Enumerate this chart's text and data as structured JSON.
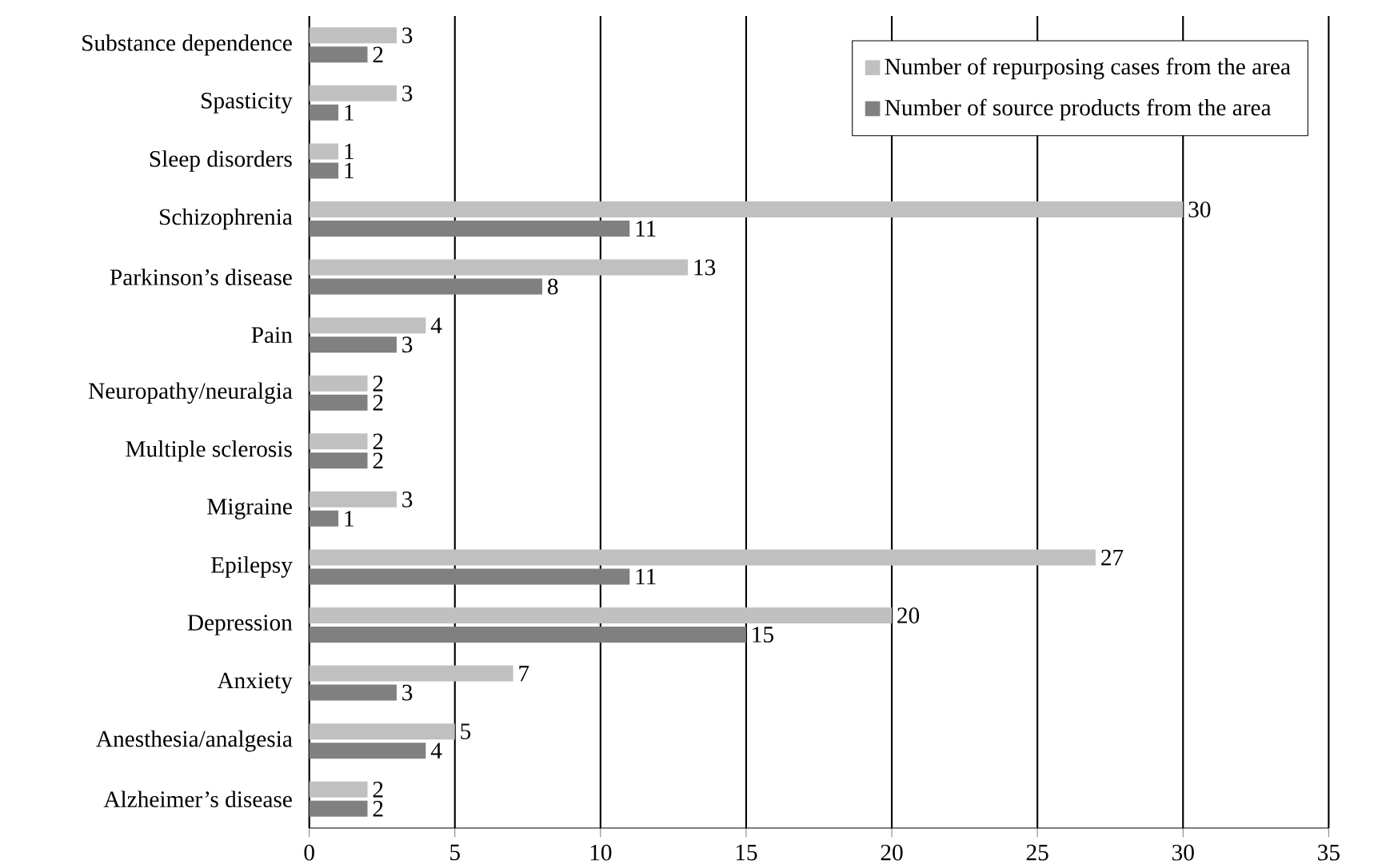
{
  "chart_data": {
    "type": "bar",
    "orientation": "horizontal",
    "categories": [
      "Substance dependence",
      "Spasticity",
      "Sleep disorders",
      "Schizophrenia",
      "Parkinson’s disease",
      "Pain",
      "Neuropathy/neuralgia",
      "Multiple sclerosis",
      "Migraine",
      "Epilepsy",
      "Depression",
      "Anxiety",
      "Anesthesia/analgesia",
      "Alzheimer’s disease"
    ],
    "series": [
      {
        "name": "Number of repurposing cases from the area",
        "color": "#c0c0c0",
        "values": [
          3,
          3,
          1,
          30,
          13,
          4,
          2,
          2,
          3,
          27,
          20,
          7,
          5,
          2
        ]
      },
      {
        "name": "Number of source products from the area",
        "color": "#808080",
        "values": [
          2,
          1,
          1,
          11,
          8,
          3,
          2,
          2,
          1,
          11,
          15,
          3,
          4,
          2
        ]
      }
    ],
    "xlim": [
      0,
      35
    ],
    "xticks": [
      0,
      5,
      10,
      15,
      20,
      25,
      30,
      35
    ],
    "grid": "x",
    "legend": "top right",
    "data_labels": true
  }
}
